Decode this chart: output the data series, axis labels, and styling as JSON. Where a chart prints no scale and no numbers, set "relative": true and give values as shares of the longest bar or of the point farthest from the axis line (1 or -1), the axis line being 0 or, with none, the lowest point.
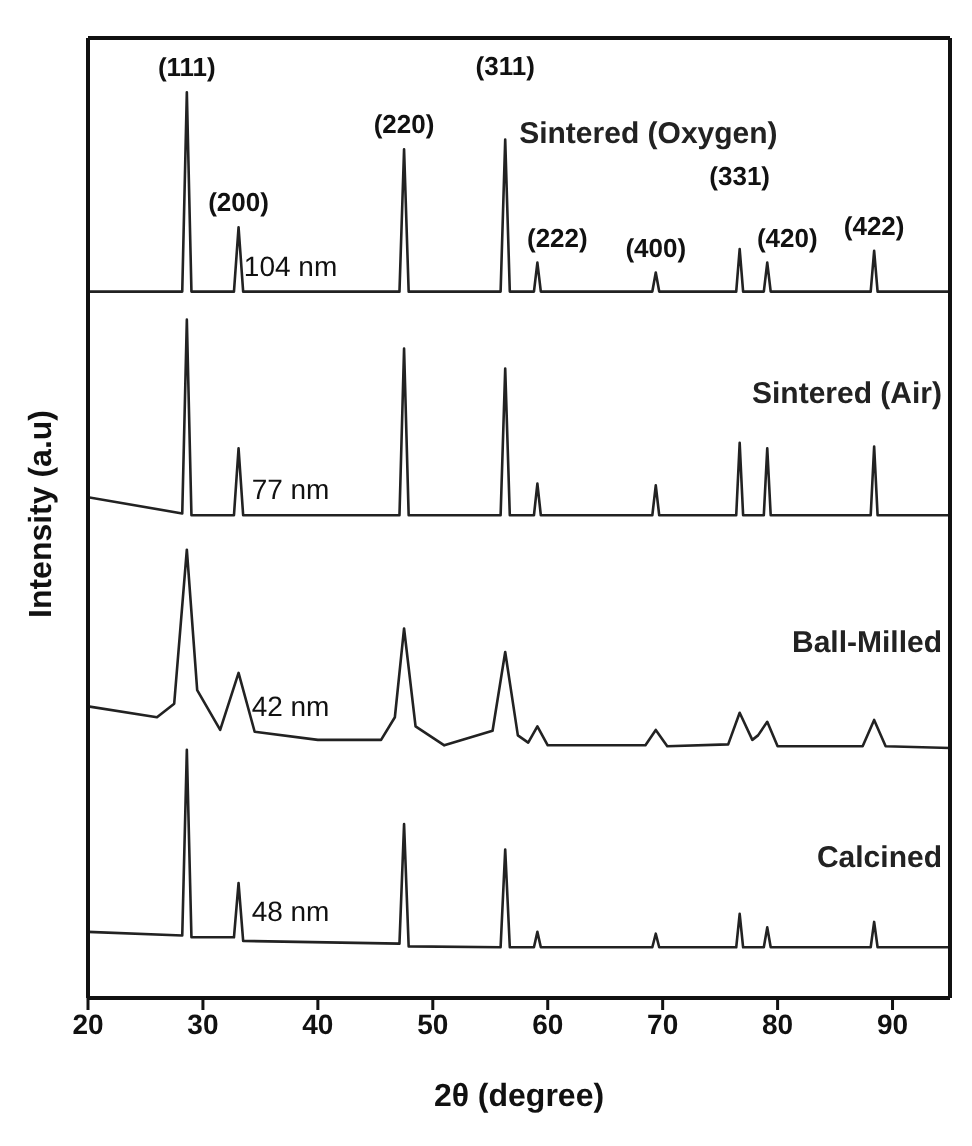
{
  "chart_data": {
    "type": "line",
    "relative": true,
    "xlabel": "2θ (degree)",
    "ylabel": "Intensity (a.u)",
    "xlim": [
      20,
      95
    ],
    "xticks": [
      20,
      30,
      40,
      50,
      60,
      70,
      80,
      90
    ],
    "line_style": "solid",
    "marker": "none",
    "x": [
      20,
      28.2,
      28.6,
      29.0,
      32.7,
      33.1,
      33.5,
      47.1,
      47.5,
      47.9,
      55.9,
      56.3,
      56.7,
      58.8,
      59.1,
      59.4,
      69.1,
      69.4,
      69.7,
      76.4,
      76.7,
      77.0,
      78.8,
      79.1,
      79.4,
      88.1,
      88.4,
      88.7,
      95
    ],
    "series": [
      {
        "name": "Sintered (Oxygen)",
        "color": "#222222",
        "values": [
          0.78,
          0.78,
          1.0,
          0.78,
          0.78,
          0.851,
          0.78,
          0.78,
          0.937,
          0.78,
          0.78,
          0.948,
          0.78,
          0.78,
          0.812,
          0.78,
          0.78,
          0.801,
          0.78,
          0.78,
          0.827,
          0.78,
          0.78,
          0.812,
          0.78,
          0.78,
          0.825,
          0.78,
          0.78
        ]
      },
      {
        "name": "Sintered (Air)",
        "color": "#222222",
        "values": [
          0.553,
          0.535,
          0.749,
          0.533,
          0.533,
          0.607,
          0.533,
          0.533,
          0.717,
          0.533,
          0.533,
          0.695,
          0.533,
          0.533,
          0.568,
          0.533,
          0.533,
          0.566,
          0.533,
          0.533,
          0.613,
          0.533,
          0.533,
          0.607,
          0.533,
          0.533,
          0.609,
          0.533,
          0.533
        ]
      },
      {
        "name": "Ball-Milled",
        "color": "#222222",
        "x": [
          20,
          26,
          27.5,
          28.6,
          29.5,
          31.5,
          33.1,
          34.5,
          40,
          45.5,
          46.7,
          47.5,
          48.5,
          51,
          55.2,
          56.3,
          57.4,
          58.3,
          59.1,
          60,
          68.5,
          69.4,
          70.4,
          75.7,
          76.7,
          77.8,
          78.3,
          79.1,
          80,
          87.4,
          88.4,
          89.4,
          95
        ],
        "values": [
          0.322,
          0.31,
          0.325,
          0.495,
          0.34,
          0.296,
          0.359,
          0.294,
          0.285,
          0.285,
          0.31,
          0.408,
          0.3,
          0.279,
          0.295,
          0.382,
          0.29,
          0.282,
          0.3,
          0.279,
          0.279,
          0.296,
          0.278,
          0.28,
          0.315,
          0.285,
          0.29,
          0.305,
          0.278,
          0.278,
          0.307,
          0.278,
          0.276
        ]
      },
      {
        "name": "Calcined",
        "color": "#222222",
        "values": [
          0.073,
          0.069,
          0.274,
          0.067,
          0.067,
          0.127,
          0.063,
          0.06,
          0.192,
          0.057,
          0.056,
          0.164,
          0.056,
          0.056,
          0.073,
          0.056,
          0.056,
          0.071,
          0.056,
          0.056,
          0.093,
          0.056,
          0.056,
          0.078,
          0.056,
          0.056,
          0.084,
          0.056,
          0.056
        ]
      }
    ],
    "annotations": [
      {
        "text": "(111)",
        "x": 28.6,
        "y": 1.0
      },
      {
        "text": "(200)",
        "x": 33.1,
        "y": 0.851
      },
      {
        "text": "(220)",
        "x": 47.5,
        "y": 0.937
      },
      {
        "text": "(311)",
        "x": 56.3,
        "y": 0.948
      },
      {
        "text": "(222)",
        "x": 59.1,
        "y": 0.812
      },
      {
        "text": "(400)",
        "x": 69.4,
        "y": 0.801
      },
      {
        "text": "(331)",
        "x": 76.7,
        "y": 0.827
      },
      {
        "text": "(420)",
        "x": 79.1,
        "y": 0.812
      },
      {
        "text": "(422)",
        "x": 88.4,
        "y": 0.825
      },
      "104 nm",
      "77 nm",
      "42 nm",
      "48 nm"
    ]
  }
}
